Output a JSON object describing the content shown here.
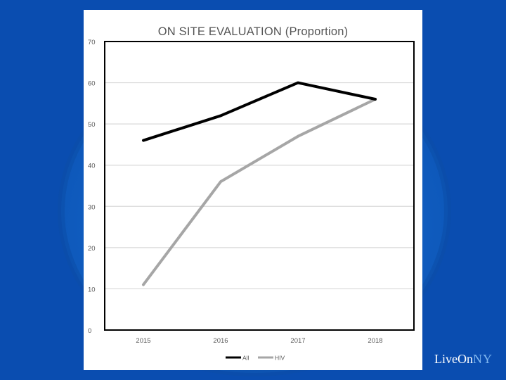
{
  "chart_data": {
    "type": "line",
    "title": "ON SITE EVALUATION (Proportion)",
    "xlabel": "",
    "ylabel": "",
    "categories": [
      "2015",
      "2016",
      "2017",
      "2018"
    ],
    "ylim": [
      0,
      70
    ],
    "yticks": [
      0,
      10,
      20,
      30,
      40,
      50,
      60,
      70
    ],
    "grid": true,
    "legend_position": "bottom",
    "series": [
      {
        "name": "All",
        "values": [
          46,
          52,
          60,
          56
        ],
        "color": "#000000"
      },
      {
        "name": "HIV",
        "values": [
          11,
          36,
          47,
          56
        ],
        "color": "#a6a6a6"
      }
    ]
  },
  "logo": {
    "main": "LiveOn",
    "accent": "NY"
  }
}
